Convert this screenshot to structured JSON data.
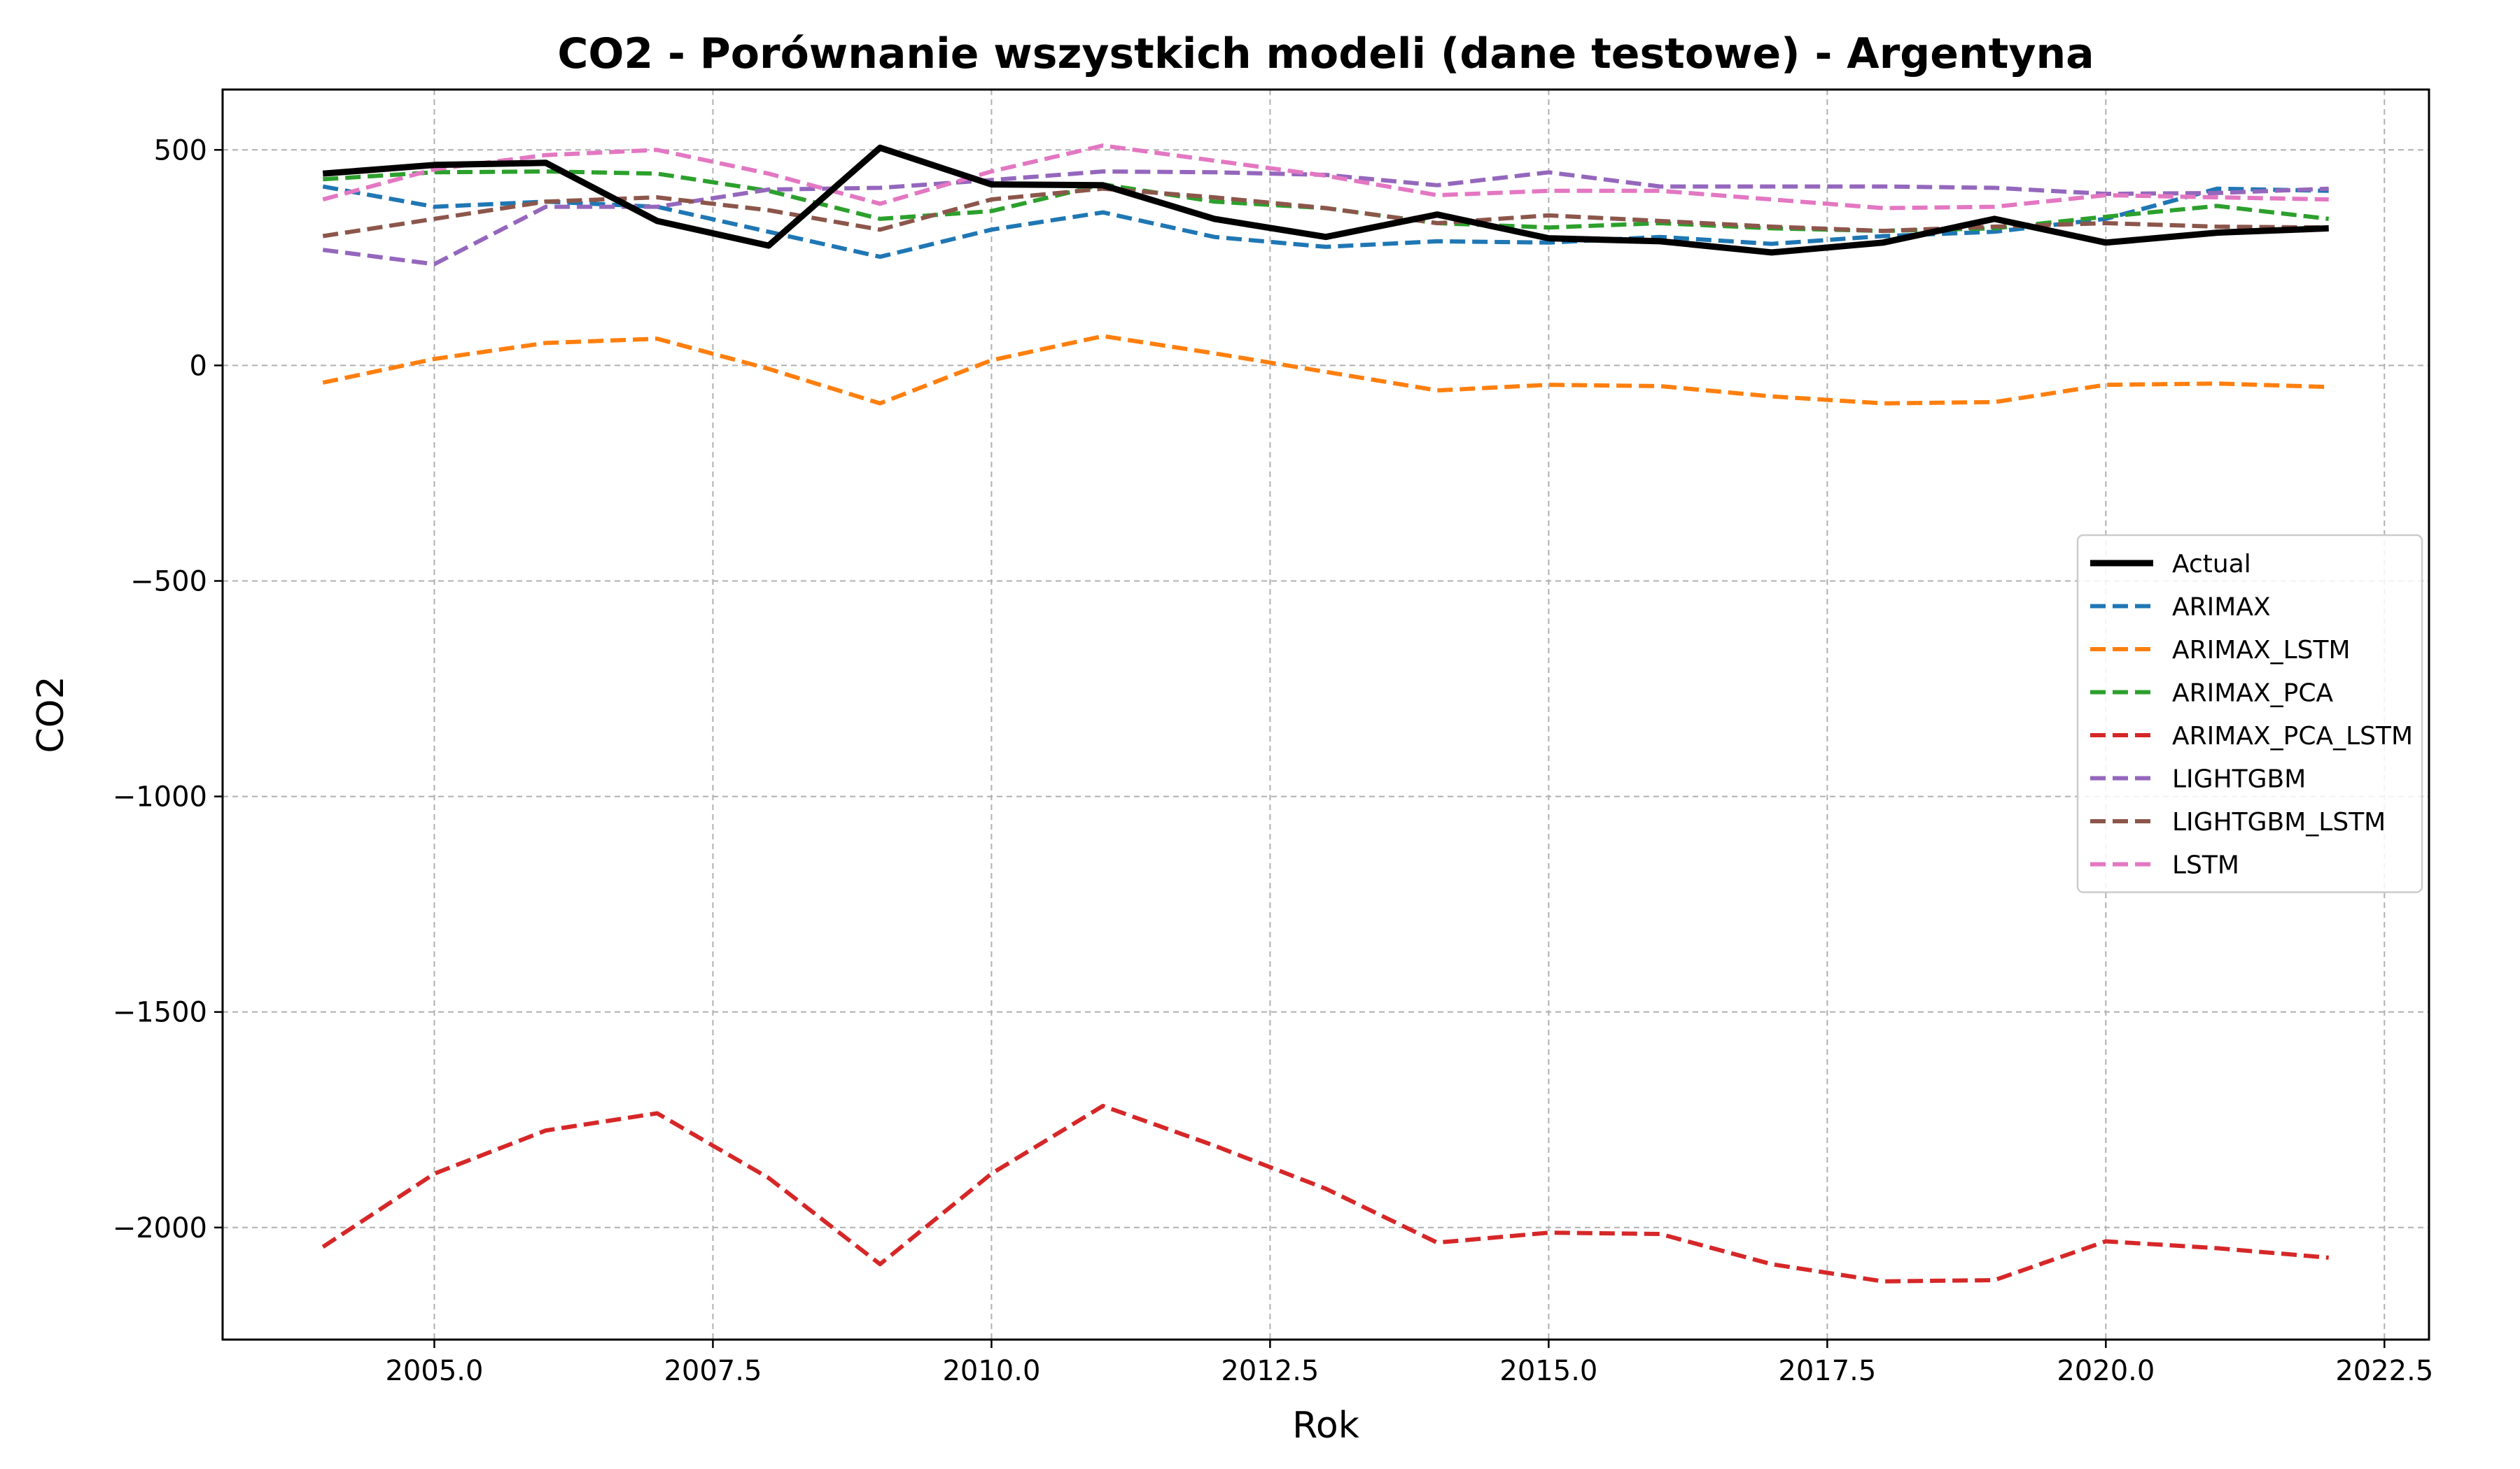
{
  "chart_data": {
    "type": "line",
    "title": "CO2 - Porównanie wszystkich modeli (dane testowe) - Argentyna",
    "xlabel": "Rok",
    "ylabel": "CO2",
    "xlim": [
      2003.1,
      2022.9
    ],
    "ylim": [
      -2260,
      640
    ],
    "xticks": [
      2005.0,
      2007.5,
      2010.0,
      2012.5,
      2015.0,
      2017.5,
      2020.0,
      2022.5
    ],
    "xtick_labels": [
      "2005.0",
      "2007.5",
      "2010.0",
      "2012.5",
      "2015.0",
      "2017.5",
      "2020.0",
      "2022.5"
    ],
    "yticks": [
      500,
      0,
      -500,
      -1000,
      -1500,
      -2000
    ],
    "ytick_labels": [
      "500",
      "0",
      "−500",
      "−1000",
      "−1500",
      "−2000"
    ],
    "grid": true,
    "legend_position": "center-right",
    "x": [
      2004,
      2005,
      2006,
      2007,
      2008,
      2009,
      2010,
      2011,
      2012,
      2013,
      2014,
      2015,
      2016,
      2017,
      2018,
      2019,
      2020,
      2021,
      2022
    ],
    "series": [
      {
        "name": "Actual",
        "color": "#000000",
        "style": "solid",
        "values": [
          445,
          465,
          470,
          335,
          278,
          505,
          420,
          418,
          340,
          298,
          350,
          295,
          288,
          262,
          285,
          340,
          285,
          308,
          318
        ]
      },
      {
        "name": "ARIMAX",
        "color": "#1f77b4",
        "style": "dashed",
        "values": [
          415,
          368,
          380,
          368,
          310,
          252,
          315,
          355,
          298,
          275,
          288,
          285,
          298,
          282,
          300,
          310,
          340,
          410,
          405
        ]
      },
      {
        "name": "ARIMAX_LSTM",
        "color": "#ff7f0e",
        "style": "dashed",
        "values": [
          -40,
          15,
          52,
          62,
          -8,
          -88,
          12,
          68,
          28,
          -15,
          -58,
          -45,
          -48,
          -72,
          -88,
          -85,
          -45,
          -42,
          -50
        ]
      },
      {
        "name": "ARIMAX_PCA",
        "color": "#2ca02c",
        "style": "dashed",
        "values": [
          432,
          448,
          450,
          445,
          405,
          340,
          358,
          420,
          380,
          365,
          330,
          320,
          330,
          318,
          312,
          318,
          345,
          370,
          340
        ]
      },
      {
        "name": "ARIMAX_PCA_LSTM",
        "color": "#d62728",
        "style": "dashed",
        "values": [
          -2045,
          -1875,
          -1775,
          -1735,
          -1885,
          -2085,
          -1875,
          -1718,
          -1810,
          -1910,
          -2035,
          -2012,
          -2015,
          -2085,
          -2125,
          -2122,
          -2032,
          -2048,
          -2070
        ]
      },
      {
        "name": "LIGHTGBM",
        "color": "#9467bd",
        "style": "dashed",
        "values": [
          268,
          235,
          368,
          368,
          408,
          412,
          430,
          450,
          448,
          442,
          418,
          448,
          415,
          415,
          415,
          412,
          398,
          400,
          410
        ]
      },
      {
        "name": "LIGHTGBM_LSTM",
        "color": "#8c564b",
        "style": "dashed",
        "values": [
          300,
          340,
          380,
          390,
          360,
          315,
          385,
          410,
          390,
          365,
          330,
          348,
          335,
          322,
          312,
          322,
          330,
          322,
          320
        ]
      },
      {
        "name": "LSTM",
        "color": "#e377c2",
        "style": "dashed",
        "values": [
          385,
          455,
          488,
          500,
          445,
          375,
          450,
          510,
          475,
          440,
          395,
          405,
          405,
          385,
          365,
          368,
          395,
          390,
          385
        ]
      }
    ]
  }
}
